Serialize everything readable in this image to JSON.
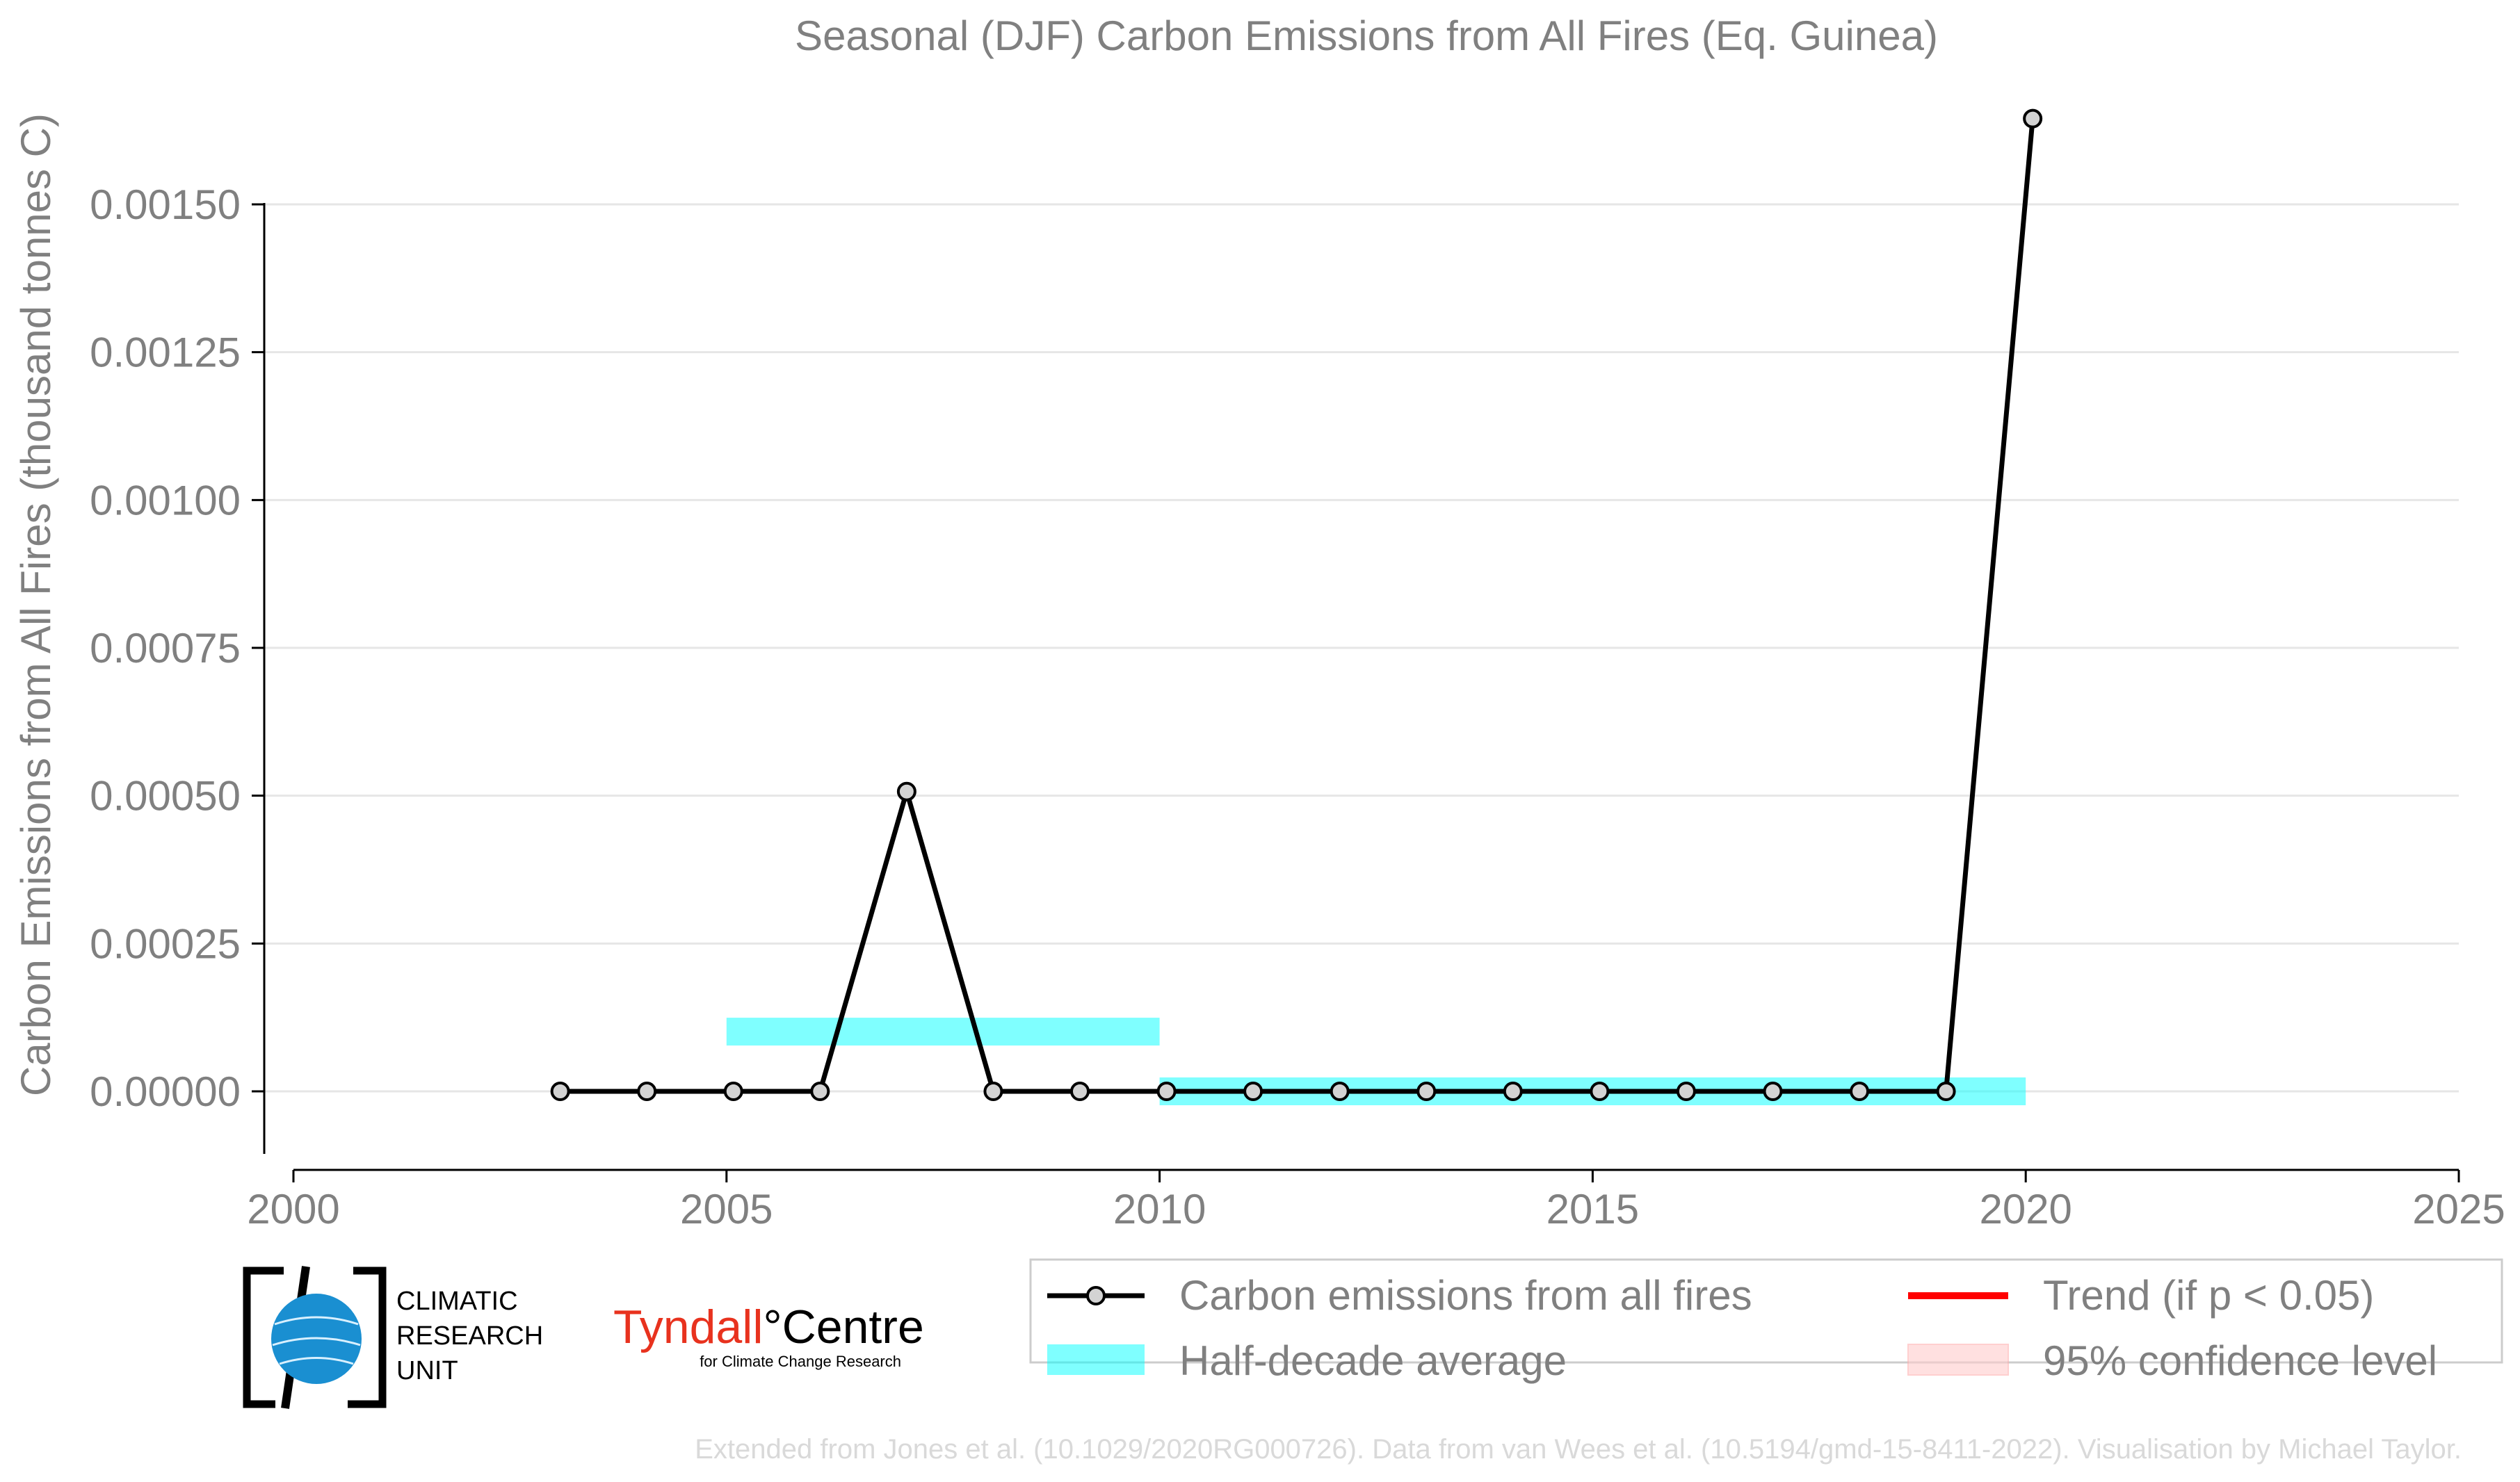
{
  "chart_data": {
    "type": "line",
    "title": "Seasonal (DJF) Carbon Emissions from All Fires (Eq. Guinea)",
    "xlabel": "",
    "ylabel": "Carbon Emissions from All Fires (thousand tonnes C)",
    "xlim": [
      2000,
      2025
    ],
    "ylim": [
      -0.00012,
      0.00168
    ],
    "x_ticks": [
      2000,
      2005,
      2010,
      2015,
      2020,
      2025
    ],
    "y_ticks": [
      0.0,
      0.00025,
      0.0005,
      0.00075,
      0.001,
      0.00125,
      0.0015
    ],
    "y_tick_labels": [
      "0.00000",
      "0.00025",
      "0.00050",
      "0.00075",
      "0.00100",
      "0.00125",
      "0.00150"
    ],
    "grid": "horizontal",
    "series": [
      {
        "name": "Carbon emissions from all fires",
        "color": "#000000",
        "marker_fill": "#d3d3d3",
        "x": [
          2003.08,
          2004.08,
          2005.08,
          2006.08,
          2007.08,
          2008.08,
          2009.08,
          2010.08,
          2011.08,
          2012.08,
          2013.08,
          2014.08,
          2015.08,
          2016.08,
          2017.08,
          2018.08,
          2019.08,
          2020.08
        ],
        "y": [
          0.0,
          0.0,
          0.0,
          0.0,
          0.000507,
          0.0,
          0.0,
          0.0,
          0.0,
          0.0,
          0.0,
          0.0,
          0.0,
          0.0,
          0.0,
          0.0,
          0.0,
          0.001645
        ]
      }
    ],
    "half_decade_average": {
      "name": "Half-decade average",
      "color": "#00ffff",
      "segments": [
        {
          "x0": 2005,
          "x1": 2010,
          "y": 0.000101
        },
        {
          "x0": 2010,
          "x1": 2020,
          "y": 0.0
        }
      ]
    },
    "legend": {
      "placement": "bottom-right",
      "entries": [
        {
          "label": "Carbon emissions from all fires",
          "type": "line-marker",
          "color": "#000000"
        },
        {
          "label": "Trend (if p < 0.05)",
          "type": "line",
          "color": "#ff0000"
        },
        {
          "label": "Half-decade average",
          "type": "band",
          "color": "#00ffff"
        },
        {
          "label": "95% confidence level",
          "type": "band",
          "color": "#ffcccc"
        }
      ]
    }
  },
  "logos": {
    "cru": {
      "line1": "CLIMATIC",
      "line2": "RESEARCH",
      "line3": "UNIT"
    },
    "tyndall": {
      "name_part1": "Tyndall",
      "degree": "°",
      "name_part2": "Centre",
      "subtitle": "for Climate Change Research"
    }
  },
  "footer_credit": "Extended from Jones et al. (10.1029/2020RG000726). Data from van Wees et al. (10.5194/gmd-15-8411-2022). Visualisation by Michael Taylor."
}
